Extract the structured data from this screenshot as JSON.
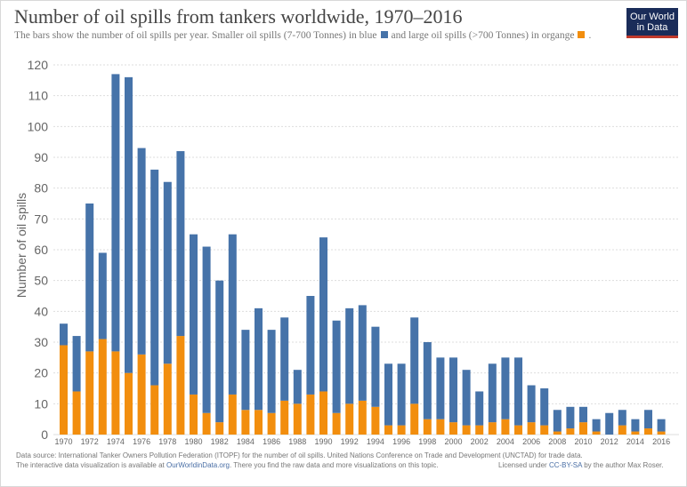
{
  "header": {
    "title": "Number of oil spills from tankers worldwide, 1970–2016",
    "subtitle_part1": "The bars show the number of oil spills per year.  Smaller oil spills (7-700 Tonnes) in blue",
    "subtitle_part2": "and large oil spills (>700 Tonnes) in organge",
    "subtitle_part3": "."
  },
  "logo": {
    "line1": "Our World",
    "line2": "in Data"
  },
  "footer": {
    "source": "Data source: International Tanker Owners Pollution Federation (ITOPF) for the number of oil spills. United Nations Conference on Trade and Development (UNCTAD) for trade data.",
    "interactive_pre": "The interactive data visualization is available at ",
    "interactive_link": "OurWorldinData.org",
    "interactive_post": ". There you find the raw data and more visualizations on this topic.",
    "license_pre": "Licensed under ",
    "license_link": "CC-BY-SA",
    "license_post": " by the author Max Roser."
  },
  "colors": {
    "small": "#4673a9",
    "large": "#f28e0e",
    "grid": "#dddddd"
  },
  "chart_data": {
    "type": "bar",
    "stacked": true,
    "ylabel": "Number of oil spills",
    "ylim": [
      0,
      120
    ],
    "yticks": [
      0,
      10,
      20,
      30,
      40,
      50,
      60,
      70,
      80,
      90,
      100,
      110,
      120
    ],
    "x": [
      1970,
      1971,
      1972,
      1973,
      1974,
      1975,
      1976,
      1977,
      1978,
      1979,
      1980,
      1981,
      1982,
      1983,
      1984,
      1985,
      1986,
      1987,
      1988,
      1989,
      1990,
      1991,
      1992,
      1993,
      1994,
      1995,
      1996,
      1997,
      1998,
      1999,
      2000,
      2001,
      2002,
      2003,
      2004,
      2005,
      2006,
      2007,
      2008,
      2009,
      2010,
      2011,
      2012,
      2013,
      2014,
      2015,
      2016
    ],
    "xtick_labels": [
      "1970",
      "1972",
      "1974",
      "1976",
      "1978",
      "1980",
      "1982",
      "1984",
      "1986",
      "1988",
      "1990",
      "1992",
      "1994",
      "1996",
      "1998",
      "2000",
      "2002",
      "2004",
      "2006",
      "2008",
      "2010",
      "2012",
      "2014",
      "2016"
    ],
    "grid": true,
    "series": [
      {
        "key": "large",
        "values": [
          29,
          14,
          27,
          31,
          27,
          20,
          26,
          16,
          23,
          32,
          13,
          7,
          4,
          13,
          8,
          8,
          7,
          11,
          10,
          13,
          14,
          7,
          10,
          11,
          9,
          3,
          3,
          10,
          5,
          5,
          4,
          3,
          3,
          4,
          5,
          3,
          4,
          3,
          1,
          2,
          4,
          1,
          0,
          3,
          1,
          2,
          1
        ]
      },
      {
        "key": "small",
        "values": [
          7,
          18,
          48,
          28,
          90,
          96,
          67,
          70,
          59,
          60,
          52,
          54,
          46,
          52,
          26,
          33,
          27,
          27,
          11,
          32,
          50,
          30,
          31,
          31,
          26,
          20,
          20,
          28,
          25,
          20,
          21,
          18,
          11,
          19,
          20,
          22,
          12,
          12,
          7,
          7,
          5,
          4,
          7,
          5,
          4,
          6,
          4
        ]
      }
    ]
  }
}
